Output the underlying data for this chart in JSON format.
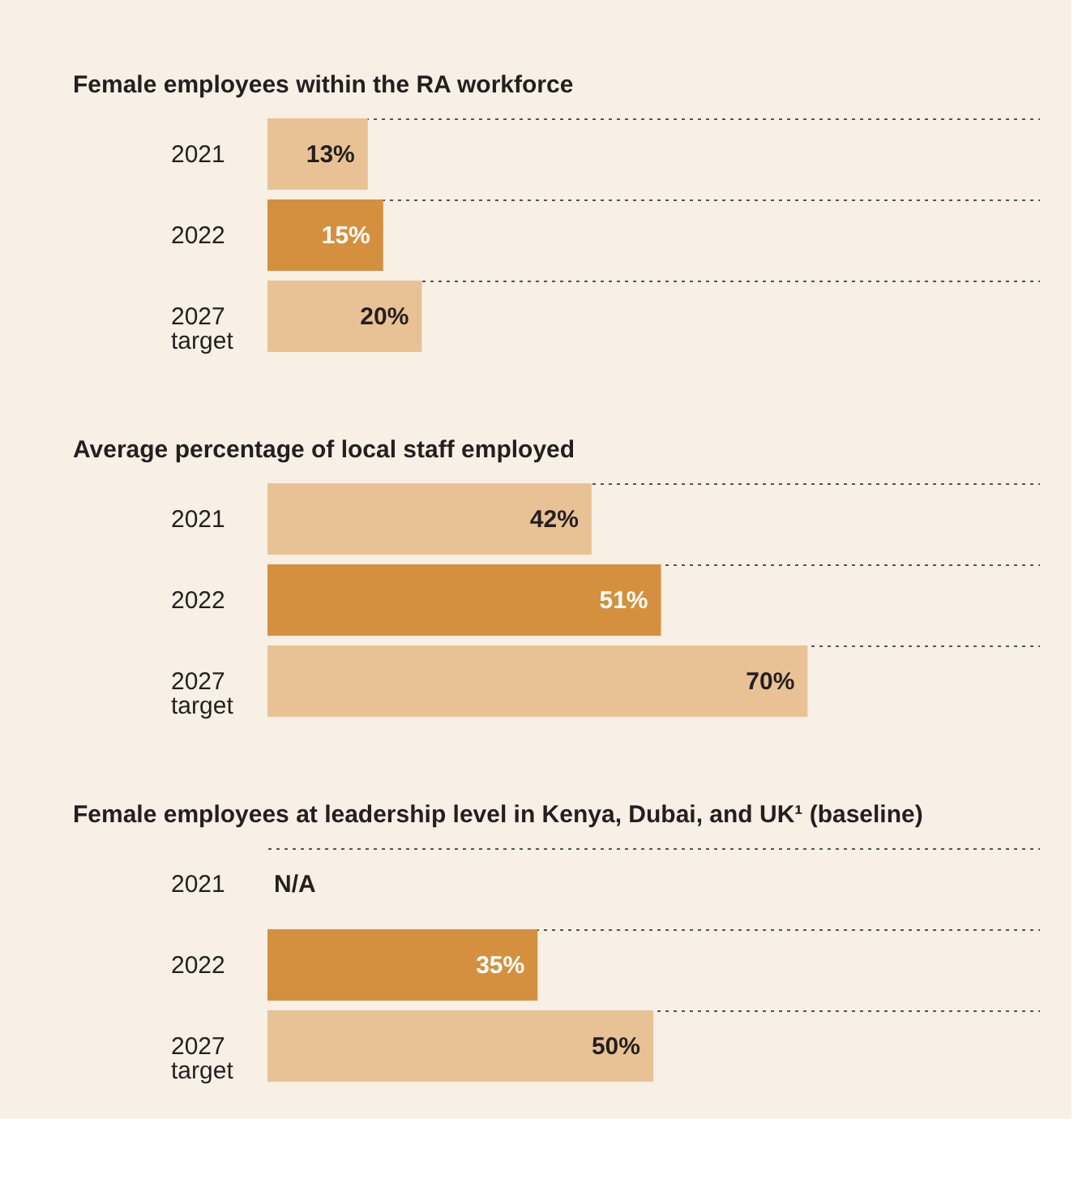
{
  "chart_data": [
    {
      "type": "bar",
      "orientation": "horizontal",
      "title": "Female employees within the RA workforce",
      "categories": [
        "2021",
        "2022",
        "2027 target"
      ],
      "values": [
        13,
        15,
        20
      ],
      "colors": [
        "#e8c295",
        "#d4903e",
        "#e8c295"
      ],
      "value_labels": [
        "13%",
        "15%",
        "20%"
      ],
      "xlim": [
        0,
        100
      ],
      "grid": "y",
      "tick_labels": "y"
    },
    {
      "type": "bar",
      "orientation": "horizontal",
      "title": "Average percentage of local staff employed",
      "categories": [
        "2021",
        "2022",
        "2027 target"
      ],
      "values": [
        42,
        51,
        70
      ],
      "colors": [
        "#e8c295",
        "#d4903e",
        "#e8c295"
      ],
      "value_labels": [
        "42%",
        "51%",
        "70%"
      ],
      "xlim": [
        0,
        100
      ],
      "grid": "y",
      "tick_labels": "y"
    },
    {
      "type": "bar",
      "orientation": "horizontal",
      "title": "Female employees at leadership level in Kenya, Dubai, and UK¹ (baseline)",
      "categories": [
        "2021",
        "2022",
        "2027 target"
      ],
      "values": [
        null,
        35,
        50
      ],
      "colors": [
        "#e8c295",
        "#d4903e",
        "#e8c295"
      ],
      "value_labels": [
        "N/A",
        "35%",
        "50%"
      ],
      "xlim": [
        0,
        100
      ],
      "grid": "y",
      "tick_labels": "y"
    }
  ]
}
